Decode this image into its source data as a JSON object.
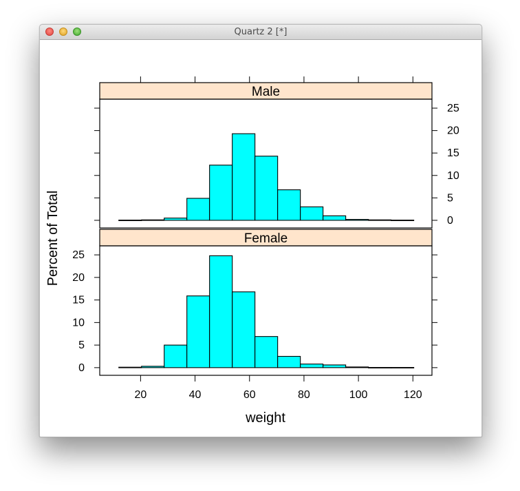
{
  "window": {
    "title": "Quartz 2 [*]"
  },
  "colors": {
    "bar_fill": "#00ffff",
    "strip_fill": "#ffe5cc",
    "axis": "#000000"
  },
  "chart_data": {
    "type": "bar",
    "subtype": "histogram",
    "layout": "two panels stacked vertically, shared x axis",
    "xlabel": "weight",
    "ylabel": "Percent of Total",
    "xlim": [
      5,
      127
    ],
    "ylim": [
      -1.7,
      27
    ],
    "x_ticks": [
      20,
      40,
      60,
      80,
      100,
      120
    ],
    "y_ticks": [
      0,
      5,
      10,
      15,
      20,
      25
    ],
    "bin_edges": [
      12,
      20.33,
      28.67,
      37,
      45.33,
      53.67,
      62,
      70.33,
      78.67,
      87,
      95.33,
      103.67,
      112,
      120.33
    ],
    "panels": [
      {
        "strip": "Male",
        "values": [
          0.05,
          0.1,
          0.5,
          4.9,
          12.3,
          19.3,
          14.3,
          6.8,
          3.0,
          1.0,
          0.2,
          0.1,
          0.05
        ]
      },
      {
        "strip": "Female",
        "values": [
          0.1,
          0.3,
          5.0,
          15.9,
          24.8,
          16.8,
          6.9,
          2.5,
          0.8,
          0.6,
          0.15,
          0.05,
          0.05
        ]
      }
    ]
  }
}
